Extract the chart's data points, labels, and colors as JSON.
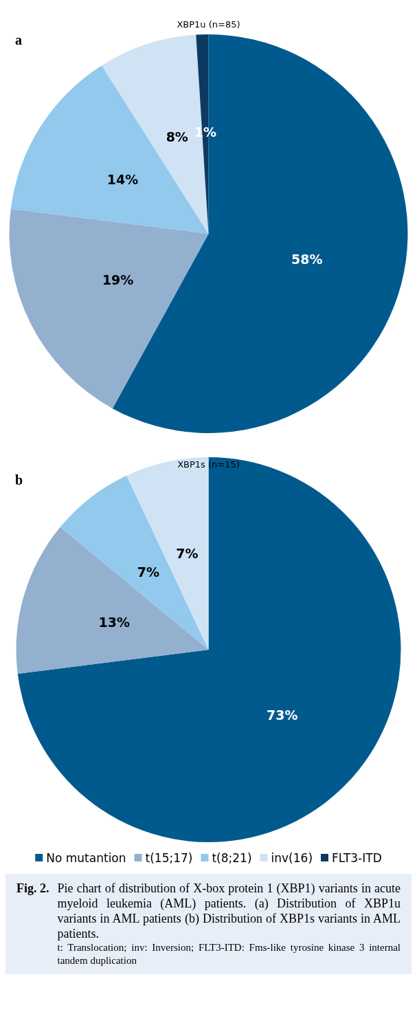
{
  "chart_data": [
    {
      "type": "pie",
      "title": "XBP1u (n=85)",
      "categories": [
        null,
        null,
        null,
        null,
        null
      ],
      "values": [
        58,
        19,
        14,
        8,
        1
      ],
      "value_labels": [
        "58%",
        "19%",
        "14%",
        "8%",
        "1%"
      ],
      "colors": [
        "#005a8e",
        "#93b0cf",
        "#92c9ec",
        "#cfe3f5",
        "#0d3a63"
      ],
      "legend": false,
      "annotations": [
        "a"
      ]
    },
    {
      "type": "pie",
      "title": "XBP1s (n=15)",
      "categories": [
        "No mutantion",
        "t(15;17)",
        "t(8;21)",
        "inv(16)",
        "FLT3-ITD"
      ],
      "values": [
        73,
        13,
        7,
        7,
        0
      ],
      "value_labels": [
        "73%",
        "13%",
        "7%",
        "7%",
        null
      ],
      "colors": [
        "#005a8e",
        "#93b0cf",
        "#92c9ec",
        "#cfe3f5",
        "#0d3a63"
      ],
      "legend": "bottom",
      "annotations": [
        "b",
        "Fig. 2.",
        "Pie chart of distribution of X-box protein 1 (XBP1) variants in acute myeloid leukemia (AML) patients. (a) Distribution of XBP1u variants in AML patients (b) Distribution of XBP1s variants in AML patients.",
        "t: Translocation; inv: Inversion; FLT3-ITD: Fms-like tyrosine kinase 3 internal tandem duplication"
      ]
    }
  ]
}
